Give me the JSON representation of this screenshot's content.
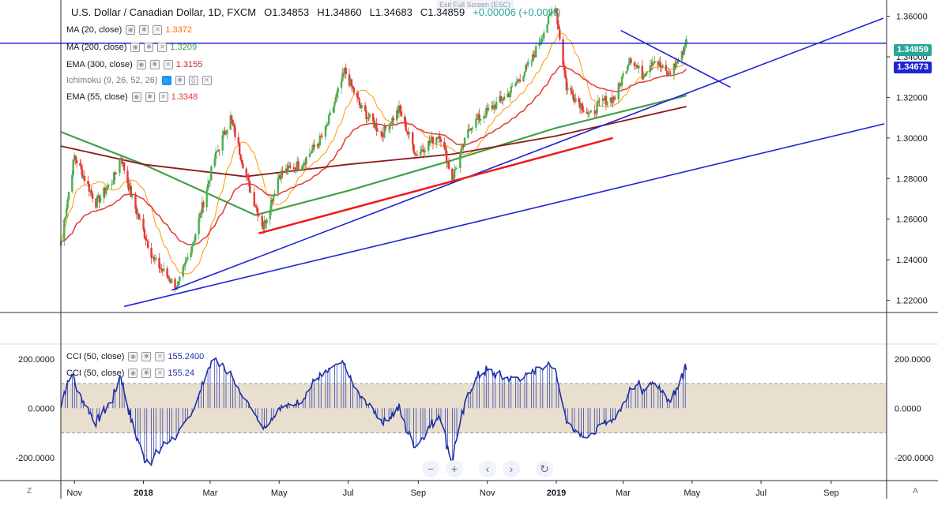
{
  "window": {
    "exit_fullscreen": "Exit Full Screen (ESC)"
  },
  "header": {
    "symbol": "U.S. Dollar / Canadian Dollar, 1D, FXCM",
    "open": "O1.34853",
    "high": "H1.34860",
    "low": "L1.34683",
    "close": "C1.34859",
    "change": "+0.00006 (+0.00%)"
  },
  "indicators": [
    {
      "label": "MA (20, close)",
      "value": "1.3372",
      "color": "#ff6d00"
    },
    {
      "label": "MA (200, close)",
      "value": "1.3209",
      "color": "#43a047"
    },
    {
      "label": "EMA (300, close)",
      "value": "1.3155",
      "color": "#8b1a1a"
    },
    {
      "label": "Ichimoku (9, 26, 52, 26)",
      "value": "",
      "color": "#2196f3"
    },
    {
      "label": "EMA (55, close)",
      "value": "1.3348",
      "color": "#e53935"
    }
  ],
  "cci_legend": [
    {
      "label": "CCI (50, close)",
      "value": "155.2400"
    },
    {
      "label": "CCI (50, close)",
      "value": "155.24"
    }
  ],
  "price_tags": {
    "last": "1.34859",
    "level": "1.34673"
  },
  "colors": {
    "up": "#26a69a",
    "up_body": "#4caf50",
    "down": "#e53935",
    "trendline": "#1f23d6",
    "support": "#f01818",
    "cci": "#1f2fa8",
    "band": "#e9dfcf"
  },
  "controls": [
    "minus",
    "plus",
    "left",
    "right",
    "reset"
  ],
  "corner": {
    "left": "Z",
    "right": "A"
  },
  "chart_data": [
    {
      "type": "candlestick",
      "title": "U.S. Dollar / Canadian Dollar, 1D, FXCM",
      "x_ticks": [
        "Nov",
        "2018",
        "Mar",
        "May",
        "Jul",
        "Sep",
        "Nov",
        "2019",
        "Mar",
        "May",
        "Jul",
        "Sep"
      ],
      "y_ticks": [
        "1.36000",
        "1.34000",
        "1.32000",
        "1.30000",
        "1.28000",
        "1.26000",
        "1.24000",
        "1.22000"
      ],
      "ylim": [
        1.214,
        1.368
      ],
      "x_range": [
        "2017-10-20",
        "2019-10-20"
      ],
      "anchors": [
        [
          "2017-10-20",
          1.249
        ],
        [
          "2017-11-01",
          1.291
        ],
        [
          "2017-11-20",
          1.268
        ],
        [
          "2017-12-05",
          1.279
        ],
        [
          "2017-12-12",
          1.291
        ],
        [
          "2017-12-22",
          1.27
        ],
        [
          "2018-01-10",
          1.24
        ],
        [
          "2018-01-31",
          1.226
        ],
        [
          "2018-02-15",
          1.251
        ],
        [
          "2018-03-05",
          1.29
        ],
        [
          "2018-03-19",
          1.31
        ],
        [
          "2018-04-05",
          1.275
        ],
        [
          "2018-04-17",
          1.256
        ],
        [
          "2018-05-01",
          1.282
        ],
        [
          "2018-05-22",
          1.288
        ],
        [
          "2018-06-10",
          1.302
        ],
        [
          "2018-06-28",
          1.333
        ],
        [
          "2018-07-12",
          1.315
        ],
        [
          "2018-07-31",
          1.302
        ],
        [
          "2018-08-15",
          1.314
        ],
        [
          "2018-08-30",
          1.292
        ],
        [
          "2018-09-20",
          1.302
        ],
        [
          "2018-10-01",
          1.28
        ],
        [
          "2018-10-17",
          1.306
        ],
        [
          "2018-11-01",
          1.313
        ],
        [
          "2018-11-20",
          1.322
        ],
        [
          "2018-12-10",
          1.338
        ],
        [
          "2018-12-31",
          1.366
        ],
        [
          "2019-01-10",
          1.325
        ],
        [
          "2019-01-31",
          1.311
        ],
        [
          "2019-02-10",
          1.318
        ],
        [
          "2019-02-22",
          1.32
        ],
        [
          "2019-03-07",
          1.34
        ],
        [
          "2019-03-18",
          1.331
        ],
        [
          "2019-03-28",
          1.339
        ],
        [
          "2019-04-10",
          1.331
        ],
        [
          "2019-04-22",
          1.341
        ],
        [
          "2019-04-26",
          1.3486
        ]
      ],
      "ma20_last": 1.3372,
      "ema55_last": 1.3348,
      "ma200": [
        [
          "2017-10-20",
          1.303
        ],
        [
          "2018-01-01",
          1.287
        ],
        [
          "2018-04-10",
          1.262
        ],
        [
          "2018-07-01",
          1.274
        ],
        [
          "2018-10-01",
          1.289
        ],
        [
          "2019-01-01",
          1.305
        ],
        [
          "2019-04-26",
          1.3209
        ]
      ],
      "ema300": [
        [
          "2017-10-20",
          1.296
        ],
        [
          "2018-01-01",
          1.287
        ],
        [
          "2018-04-01",
          1.281
        ],
        [
          "2018-07-01",
          1.287
        ],
        [
          "2018-10-01",
          1.292
        ],
        [
          "2019-01-01",
          1.301
        ],
        [
          "2019-04-26",
          1.3155
        ]
      ],
      "horizontal_line": 1.34673,
      "trendlines": [
        {
          "color": "trendline",
          "from": [
            "2017-12-15",
            1.217
          ],
          "to": [
            "2019-10-18",
            1.307
          ]
        },
        {
          "color": "trendline",
          "from": [
            "2018-01-26",
            1.225
          ],
          "to": [
            "2019-10-17",
            1.359
          ]
        },
        {
          "color": "trendline",
          "from": [
            "2019-02-27",
            1.353
          ],
          "to": [
            "2019-06-04",
            1.325
          ]
        },
        {
          "color": "support",
          "from": [
            "2018-04-13",
            1.253
          ],
          "to": [
            "2019-02-20",
            1.3
          ]
        }
      ]
    },
    {
      "type": "line",
      "series": [
        {
          "name": "CCI (50, close)"
        }
      ],
      "y_ticks": [
        "200.0000",
        "0.0000",
        "-200.0000"
      ],
      "ylim": [
        -290,
        260
      ],
      "band": [
        -100,
        100
      ],
      "last": 155.24
    }
  ]
}
